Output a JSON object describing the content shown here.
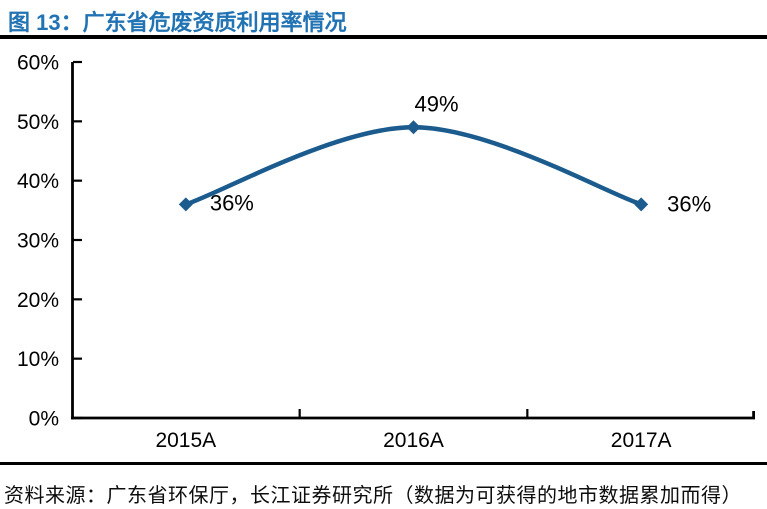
{
  "figure": {
    "title": "图 13：广东省危废资质利用率情况",
    "source": "资料来源：广东省环保厅，长江证券研究所（数据为可获得的地市数据累加而得）"
  },
  "colors": {
    "title_blue": "#2173B4",
    "series_blue": "#1B5B8D",
    "axis_black": "#000000",
    "label_black": "#000000"
  },
  "chart_data": {
    "type": "line",
    "smooth": true,
    "marker": "diamond",
    "categories": [
      "2015A",
      "2016A",
      "2017A"
    ],
    "values": [
      36,
      49,
      36
    ],
    "data_labels": [
      "36%",
      "49%",
      "36%"
    ],
    "title": "广东省危废资质利用率情况",
    "xlabel": "",
    "ylabel": "",
    "ylim": [
      0,
      60
    ],
    "ytick_step": 10,
    "ytick_labels": [
      "0%",
      "10%",
      "20%",
      "30%",
      "40%",
      "50%",
      "60%"
    ],
    "grid": false,
    "legend_position": "none"
  }
}
